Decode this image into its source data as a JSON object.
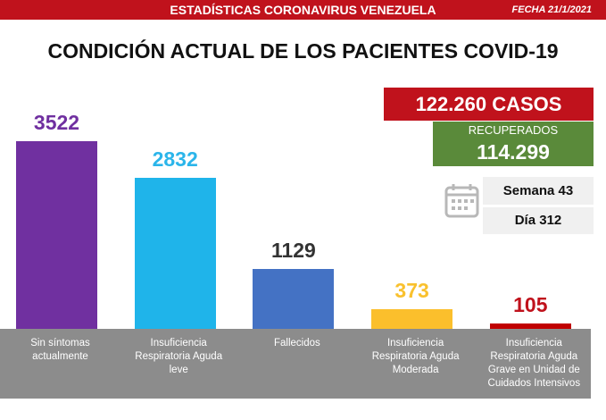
{
  "header": {
    "title": "ESTADÍSTICAS CORONAVIRUS VENEZUELA",
    "date": "FECHA 21/1/2021"
  },
  "summary": {
    "cases": "122.260 CASOS",
    "recovered_label": "RECUPERADOS",
    "recovered": "114.299",
    "week": "Semana 43",
    "day": "Día 312"
  },
  "chart_data": {
    "type": "bar",
    "title": "CONDICIÓN ACTUAL DE LOS PACIENTES COVID-19",
    "categories": [
      "Sin síntomas actualmente",
      "Insuficiencia Respiratoria Aguda leve",
      "Fallecidos",
      "Insuficiencia Respiratoria Aguda Moderada",
      "Insuficiencia Respiratoria Aguda Grave en Unidad de Cuidados Intensivos"
    ],
    "values": [
      3522,
      2832,
      1129,
      373,
      105
    ],
    "colors": [
      "#7030a0",
      "#1fb4ea",
      "#4472c4",
      "#fbbf2c",
      "#c00000"
    ],
    "value_label_colors": [
      "#7030a0",
      "#2bb5ea",
      "#333333",
      "#f9c12e",
      "#c0121c"
    ]
  }
}
